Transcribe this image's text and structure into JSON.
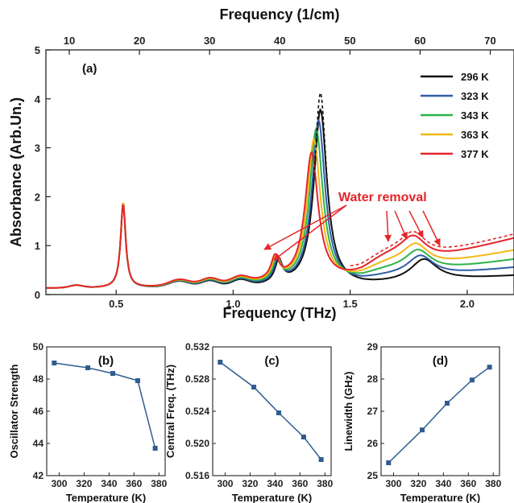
{
  "chart_data": [
    {
      "type": "line",
      "panel": "(a)",
      "xlabel": "Frequency (THz)",
      "x2label": "Frequency (1/cm)",
      "ylabel": "Absorbance (Arb.Un.)",
      "xlim": [
        0.2,
        2.2
      ],
      "ylim": [
        0,
        5
      ],
      "xticks": [
        0.5,
        1.0,
        1.5,
        2.0
      ],
      "xtick_labels": [
        "0.5",
        "1.0",
        "1.5",
        "2.0"
      ],
      "yticks": [
        0,
        1,
        2,
        3,
        4,
        5
      ],
      "ytick_labels": [
        "0",
        "1",
        "2",
        "3",
        "4",
        "5"
      ],
      "x2ticks": [
        10,
        20,
        30,
        40,
        50,
        60,
        70
      ],
      "x2tick_labels": [
        "10",
        "20",
        "30",
        "40",
        "50",
        "60",
        "70"
      ],
      "legend_position": "top-right",
      "annotation": "Water removal",
      "series": [
        {
          "name": "296 K",
          "color": "#111111",
          "peak2_x": 1.373,
          "peak2_y": 3.85,
          "peak3_x": 1.815,
          "peak3_y": 1.0,
          "base_end": 0.5
        },
        {
          "name": "323 K",
          "color": "#2f5ea7",
          "peak2_x": 1.365,
          "peak2_y": 3.6,
          "peak3_x": 1.8,
          "peak3_y": 0.98,
          "base_end": 0.6
        },
        {
          "name": "343 K",
          "color": "#2db34a",
          "peak2_x": 1.355,
          "peak2_y": 3.4,
          "peak3_x": 1.79,
          "peak3_y": 1.0,
          "base_end": 0.7
        },
        {
          "name": "363 K",
          "color": "#f3b814",
          "peak2_x": 1.345,
          "peak2_y": 3.15,
          "peak3_x": 1.78,
          "peak3_y": 1.02,
          "base_end": 0.82
        },
        {
          "name": "377 K",
          "color": "#e3262b",
          "peak2_x": 1.335,
          "peak2_y": 2.85,
          "peak3_x": 1.77,
          "peak3_y": 1.05,
          "base_end": 1.0
        }
      ]
    },
    {
      "type": "line",
      "panel": "(b)",
      "xlabel": "Temperature (K)",
      "ylabel": "Oscillator Strength",
      "xlim": [
        290,
        385
      ],
      "ylim": [
        42,
        50
      ],
      "xticks": [
        300,
        320,
        340,
        360,
        380
      ],
      "xtick_labels": [
        "300",
        "320",
        "340",
        "360",
        "380"
      ],
      "yticks": [
        42,
        44,
        46,
        48,
        50
      ],
      "ytick_labels": [
        "42",
        "44",
        "46",
        "48",
        "50"
      ],
      "x": [
        296,
        323,
        343,
        363,
        377
      ],
      "y": [
        49.0,
        48.7,
        48.35,
        47.9,
        43.7
      ]
    },
    {
      "type": "line",
      "panel": "(c)",
      "xlabel": "Temperature (K)",
      "ylabel": "Central Freq. (THz)",
      "xlim": [
        290,
        385
      ],
      "ylim": [
        0.516,
        0.532
      ],
      "xticks": [
        300,
        320,
        340,
        360,
        380
      ],
      "xtick_labels": [
        "300",
        "320",
        "340",
        "360",
        "380"
      ],
      "yticks": [
        0.516,
        0.52,
        0.524,
        0.528,
        0.532
      ],
      "ytick_labels": [
        "0.516",
        "0.520",
        "0.524",
        "0.528",
        "0.532"
      ],
      "x": [
        296,
        323,
        343,
        363,
        377
      ],
      "y": [
        0.5301,
        0.527,
        0.5238,
        0.5208,
        0.518
      ]
    },
    {
      "type": "line",
      "panel": "(d)",
      "xlabel": "Temperature (K)",
      "ylabel": "Linewidth (GHz)",
      "xlim": [
        290,
        385
      ],
      "ylim": [
        25,
        29
      ],
      "xticks": [
        300,
        320,
        340,
        360,
        380
      ],
      "xtick_labels": [
        "300",
        "320",
        "340",
        "360",
        "380"
      ],
      "yticks": [
        25,
        26,
        27,
        28,
        29
      ],
      "ytick_labels": [
        "25",
        "26",
        "27",
        "28",
        "29"
      ],
      "x": [
        296,
        323,
        343,
        363,
        377
      ],
      "y": [
        25.4,
        26.42,
        27.25,
        27.97,
        28.37
      ]
    }
  ]
}
